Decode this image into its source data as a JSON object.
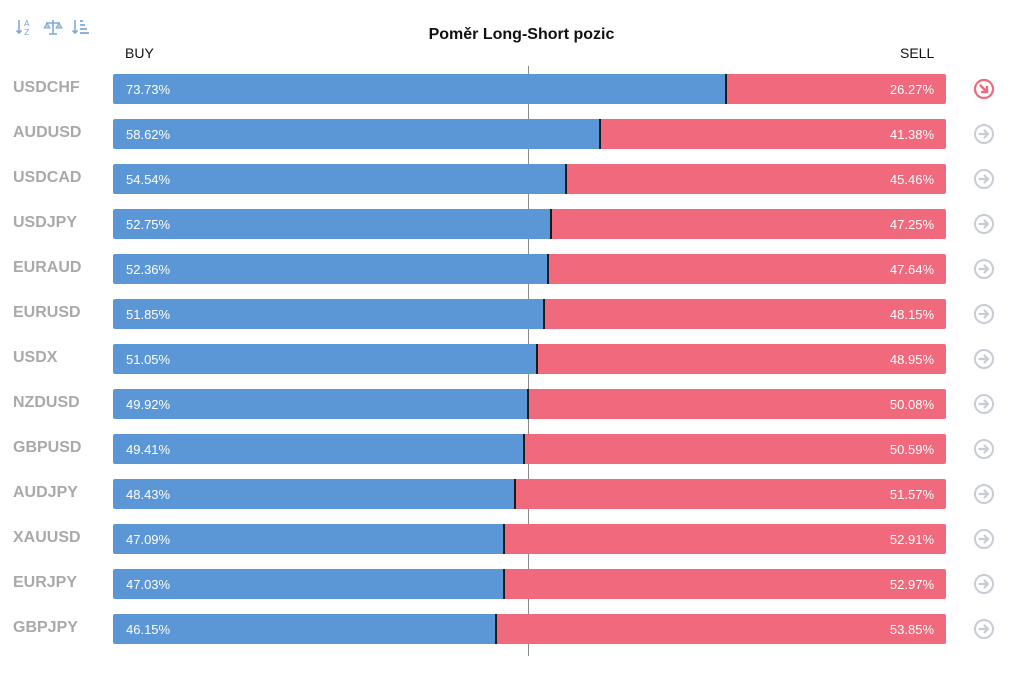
{
  "title": "Poměr Long-Short pozic",
  "headers": {
    "buy": "BUY",
    "sell": "SELL"
  },
  "toolbar": [
    {
      "name": "sort-az-icon"
    },
    {
      "name": "balance-scale-icon"
    },
    {
      "name": "sort-amount-icon"
    }
  ],
  "colors": {
    "buy": "#5b97d6",
    "sell": "#f0697c",
    "symbol": "#a9a9a9",
    "arrow_neutral": "#c8ccd6",
    "arrow_alert": "#f0697c"
  },
  "rows": [
    {
      "symbol": "USDCHF",
      "buy": "73.73%",
      "sell": "26.27%",
      "buy_value": 73.73,
      "icon": "arrow-down-right-icon",
      "alert": true
    },
    {
      "symbol": "AUDUSD",
      "buy": "58.62%",
      "sell": "41.38%",
      "buy_value": 58.62,
      "icon": "arrow-right-icon",
      "alert": false
    },
    {
      "symbol": "USDCAD",
      "buy": "54.54%",
      "sell": "45.46%",
      "buy_value": 54.54,
      "icon": "arrow-right-icon",
      "alert": false
    },
    {
      "symbol": "USDJPY",
      "buy": "52.75%",
      "sell": "47.25%",
      "buy_value": 52.75,
      "icon": "arrow-right-icon",
      "alert": false
    },
    {
      "symbol": "EURAUD",
      "buy": "52.36%",
      "sell": "47.64%",
      "buy_value": 52.36,
      "icon": "arrow-right-icon",
      "alert": false
    },
    {
      "symbol": "EURUSD",
      "buy": "51.85%",
      "sell": "48.15%",
      "buy_value": 51.85,
      "icon": "arrow-right-icon",
      "alert": false
    },
    {
      "symbol": "USDX",
      "buy": "51.05%",
      "sell": "48.95%",
      "buy_value": 51.05,
      "icon": "arrow-right-icon",
      "alert": false
    },
    {
      "symbol": "NZDUSD",
      "buy": "49.92%",
      "sell": "50.08%",
      "buy_value": 49.92,
      "icon": "arrow-right-icon",
      "alert": false
    },
    {
      "symbol": "GBPUSD",
      "buy": "49.41%",
      "sell": "50.59%",
      "buy_value": 49.41,
      "icon": "arrow-right-icon",
      "alert": false
    },
    {
      "symbol": "AUDJPY",
      "buy": "48.43%",
      "sell": "51.57%",
      "buy_value": 48.43,
      "icon": "arrow-right-icon",
      "alert": false
    },
    {
      "symbol": "XAUUSD",
      "buy": "47.09%",
      "sell": "52.91%",
      "buy_value": 47.09,
      "icon": "arrow-right-icon",
      "alert": false
    },
    {
      "symbol": "EURJPY",
      "buy": "47.03%",
      "sell": "52.97%",
      "buy_value": 47.03,
      "icon": "arrow-right-icon",
      "alert": false
    },
    {
      "symbol": "GBPJPY",
      "buy": "46.15%",
      "sell": "53.85%",
      "buy_value": 46.15,
      "icon": "arrow-right-icon",
      "alert": false
    }
  ]
}
